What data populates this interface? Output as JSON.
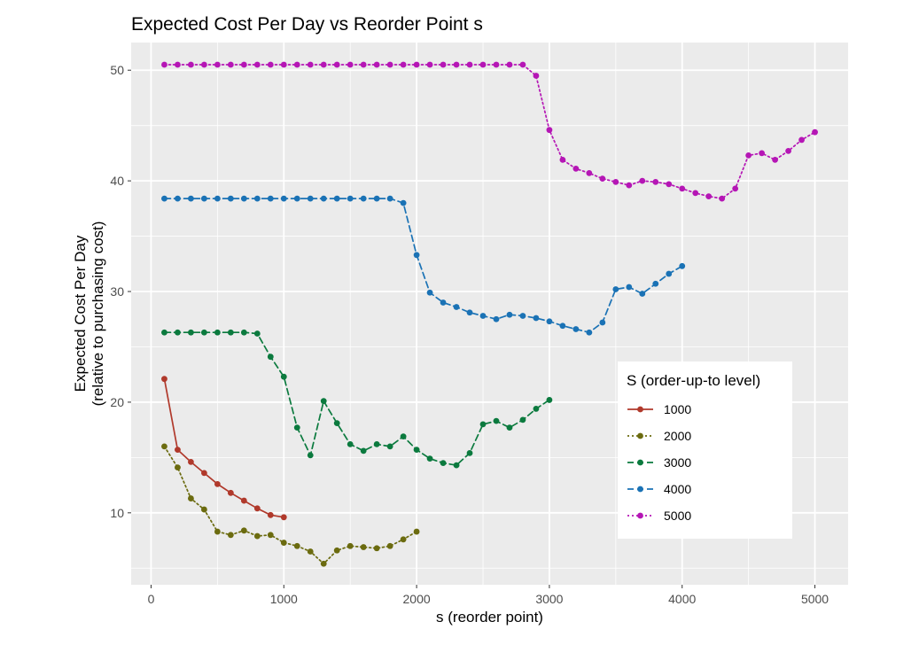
{
  "chart_data": {
    "type": "line",
    "title": "Expected Cost Per Day vs Reorder Point s",
    "xlabel": "s (reorder point)",
    "ylabel_line1": "Expected Cost Per Day",
    "ylabel_line2": "(relative to purchasing cost)",
    "xlim": [
      -150,
      5250
    ],
    "ylim": [
      3.5,
      52.5
    ],
    "x_ticks": [
      0,
      1000,
      2000,
      3000,
      4000,
      5000
    ],
    "x_tick_labels": [
      "0",
      "1000",
      "2000",
      "3000",
      "4000",
      "5000"
    ],
    "y_ticks": [
      10,
      20,
      30,
      40,
      50
    ],
    "y_tick_labels": [
      "10",
      "20",
      "30",
      "40",
      "50"
    ],
    "grid": true,
    "legend": {
      "title": "S (order-up-to level)",
      "placement": "bottom-right, inside plot"
    },
    "series": [
      {
        "name": "1000",
        "color": "#b0392b",
        "linestyle": "solid",
        "x": [
          100,
          200,
          300,
          400,
          500,
          600,
          700,
          800,
          900,
          1000
        ],
        "y": [
          22.1,
          15.7,
          14.6,
          13.6,
          12.6,
          11.8,
          11.1,
          10.4,
          9.8,
          9.6
        ]
      },
      {
        "name": "2000",
        "color": "#6b6b0f",
        "linestyle": "dotted",
        "x": [
          100,
          200,
          300,
          400,
          500,
          600,
          700,
          800,
          900,
          1000,
          1100,
          1200,
          1300,
          1400,
          1500,
          1600,
          1700,
          1800,
          1900,
          2000
        ],
        "y": [
          16.0,
          14.1,
          11.3,
          10.3,
          8.3,
          8.0,
          8.4,
          7.9,
          8.0,
          7.3,
          7.0,
          6.5,
          5.4,
          6.6,
          7.0,
          6.9,
          6.8,
          7.0,
          7.6,
          8.3
        ]
      },
      {
        "name": "3000",
        "color": "#0b7a3e",
        "linestyle": "dashed",
        "x": [
          100,
          200,
          300,
          400,
          500,
          600,
          700,
          800,
          900,
          1000,
          1100,
          1200,
          1300,
          1400,
          1500,
          1600,
          1700,
          1800,
          1900,
          2000,
          2100,
          2200,
          2300,
          2400,
          2500,
          2600,
          2700,
          2800,
          2900,
          3000
        ],
        "y": [
          26.3,
          26.3,
          26.3,
          26.3,
          26.3,
          26.3,
          26.3,
          26.2,
          24.1,
          22.3,
          17.7,
          15.2,
          20.1,
          18.1,
          16.2,
          15.6,
          16.2,
          16.0,
          16.9,
          15.7,
          14.9,
          14.5,
          14.3,
          15.4,
          18.0,
          18.3,
          17.7,
          18.4,
          19.4,
          20.2
        ]
      },
      {
        "name": "4000",
        "color": "#1a72b5",
        "linestyle": "dashed",
        "x": [
          100,
          200,
          300,
          400,
          500,
          600,
          700,
          800,
          900,
          1000,
          1100,
          1200,
          1300,
          1400,
          1500,
          1600,
          1700,
          1800,
          1900,
          2000,
          2100,
          2200,
          2300,
          2400,
          2500,
          2600,
          2700,
          2800,
          2900,
          3000,
          3100,
          3200,
          3300,
          3400,
          3500,
          3600,
          3700,
          3800,
          3900,
          4000
        ],
        "y": [
          38.4,
          38.4,
          38.4,
          38.4,
          38.4,
          38.4,
          38.4,
          38.4,
          38.4,
          38.4,
          38.4,
          38.4,
          38.4,
          38.4,
          38.4,
          38.4,
          38.4,
          38.4,
          38.0,
          33.3,
          29.9,
          29.0,
          28.6,
          28.1,
          27.8,
          27.5,
          27.9,
          27.8,
          27.6,
          27.3,
          26.9,
          26.6,
          26.3,
          27.2,
          30.2,
          30.4,
          29.8,
          30.7,
          31.6,
          32.3
        ]
      },
      {
        "name": "5000",
        "color": "#b516b5",
        "linestyle": "dotted",
        "x": [
          100,
          200,
          300,
          400,
          500,
          600,
          700,
          800,
          900,
          1000,
          1100,
          1200,
          1300,
          1400,
          1500,
          1600,
          1700,
          1800,
          1900,
          2000,
          2100,
          2200,
          2300,
          2400,
          2500,
          2600,
          2700,
          2800,
          2900,
          3000,
          3100,
          3200,
          3300,
          3400,
          3500,
          3600,
          3700,
          3800,
          3900,
          4000,
          4100,
          4200,
          4300,
          4400,
          4500,
          4600,
          4700,
          4800,
          4900,
          5000
        ],
        "y": [
          50.5,
          50.5,
          50.5,
          50.5,
          50.5,
          50.5,
          50.5,
          50.5,
          50.5,
          50.5,
          50.5,
          50.5,
          50.5,
          50.5,
          50.5,
          50.5,
          50.5,
          50.5,
          50.5,
          50.5,
          50.5,
          50.5,
          50.5,
          50.5,
          50.5,
          50.5,
          50.5,
          50.5,
          49.5,
          44.6,
          41.9,
          41.1,
          40.7,
          40.2,
          39.9,
          39.6,
          40.0,
          39.9,
          39.7,
          39.3,
          38.9,
          38.6,
          38.4,
          39.3,
          42.3,
          42.5,
          41.9,
          42.7,
          43.7,
          44.4
        ]
      }
    ]
  }
}
